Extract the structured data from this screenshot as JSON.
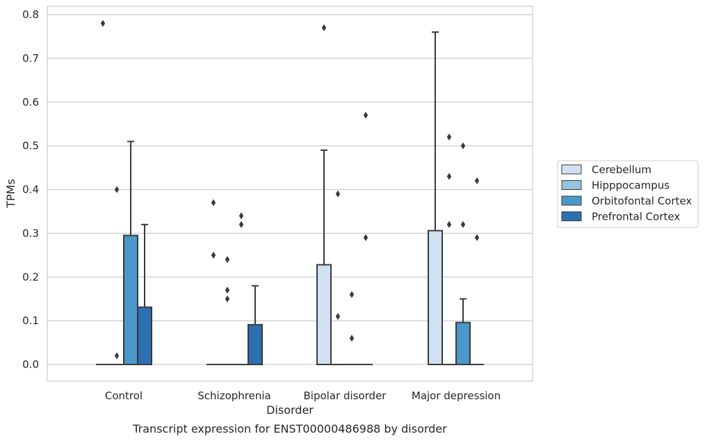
{
  "chart_data": {
    "type": "box",
    "title": "",
    "caption": "Transcript expression for ENST00000486988 by disorder",
    "xlabel": "Disorder",
    "ylabel": "TPMs",
    "ylim": [
      -0.04,
      0.815
    ],
    "yticks": [
      "0.0",
      "0.1",
      "0.2",
      "0.3",
      "0.4",
      "0.5",
      "0.6",
      "0.7",
      "0.8"
    ],
    "ytick_values": [
      0,
      0.1,
      0.2,
      0.3,
      0.4,
      0.5,
      0.6,
      0.7,
      0.8
    ],
    "grid": true,
    "legend_position": "right",
    "categories": [
      "Control",
      "Schizophrenia",
      "Bipolar disorder",
      "Major depression"
    ],
    "series": [
      {
        "name": "Cerebellum",
        "color": "#d0e1f2",
        "boxes": [
          {
            "q1": 0,
            "q3": 0,
            "median": 0,
            "whisker_low": 0,
            "whisker_high": 0,
            "outliers": [
              0.78
            ]
          },
          {
            "q1": 0,
            "q3": 0,
            "median": 0,
            "whisker_low": 0,
            "whisker_high": 0,
            "outliers": [
              0.37,
              0.25
            ]
          },
          {
            "q1": 0,
            "q3": 0.228,
            "median": 0,
            "whisker_low": 0,
            "whisker_high": 0.49,
            "outliers": [
              0.77
            ]
          },
          {
            "q1": 0,
            "q3": 0.306,
            "median": 0,
            "whisker_low": 0,
            "whisker_high": 0.76,
            "outliers": []
          }
        ]
      },
      {
        "name": "Hipppocampus",
        "color": "#94c4df",
        "boxes": [
          {
            "q1": 0,
            "q3": 0,
            "median": 0,
            "whisker_low": 0,
            "whisker_high": 0,
            "outliers": [
              0.4,
              0.02
            ]
          },
          {
            "q1": 0,
            "q3": 0,
            "median": 0,
            "whisker_low": 0,
            "whisker_high": 0,
            "outliers": [
              0.24,
              0.17,
              0.15
            ]
          },
          {
            "q1": 0,
            "q3": 0,
            "median": 0,
            "whisker_low": 0,
            "whisker_high": 0,
            "outliers": [
              0.39,
              0.11
            ]
          },
          {
            "q1": 0,
            "q3": 0,
            "median": 0,
            "whisker_low": 0,
            "whisker_high": 0,
            "outliers": [
              0.52,
              0.43,
              0.32
            ]
          }
        ]
      },
      {
        "name": "Orbitofontal Cortex",
        "color": "#4a98c9",
        "boxes": [
          {
            "q1": 0,
            "q3": 0.295,
            "median": 0,
            "whisker_low": 0,
            "whisker_high": 0.51,
            "outliers": []
          },
          {
            "q1": 0,
            "q3": 0,
            "median": 0,
            "whisker_low": 0,
            "whisker_high": 0,
            "outliers": [
              0.34,
              0.32
            ]
          },
          {
            "q1": 0,
            "q3": 0,
            "median": 0,
            "whisker_low": 0,
            "whisker_high": 0,
            "outliers": [
              0.16,
              0.06
            ]
          },
          {
            "q1": 0,
            "q3": 0.096,
            "median": 0,
            "whisker_low": 0,
            "whisker_high": 0.15,
            "outliers": [
              0.5,
              0.32
            ]
          }
        ]
      },
      {
        "name": "Prefrontal Cortex",
        "color": "#2e6fb0",
        "boxes": [
          {
            "q1": 0,
            "q3": 0.131,
            "median": 0,
            "whisker_low": 0,
            "whisker_high": 0.32,
            "outliers": []
          },
          {
            "q1": 0,
            "q3": 0.091,
            "median": 0,
            "whisker_low": 0,
            "whisker_high": 0.18,
            "outliers": []
          },
          {
            "q1": 0,
            "q3": 0,
            "median": 0,
            "whisker_low": 0,
            "whisker_high": 0,
            "outliers": [
              0.57,
              0.29
            ]
          },
          {
            "q1": 0,
            "q3": 0,
            "median": 0,
            "whisker_low": 0,
            "whisker_high": 0,
            "outliers": [
              0.42,
              0.29
            ]
          }
        ]
      }
    ]
  }
}
